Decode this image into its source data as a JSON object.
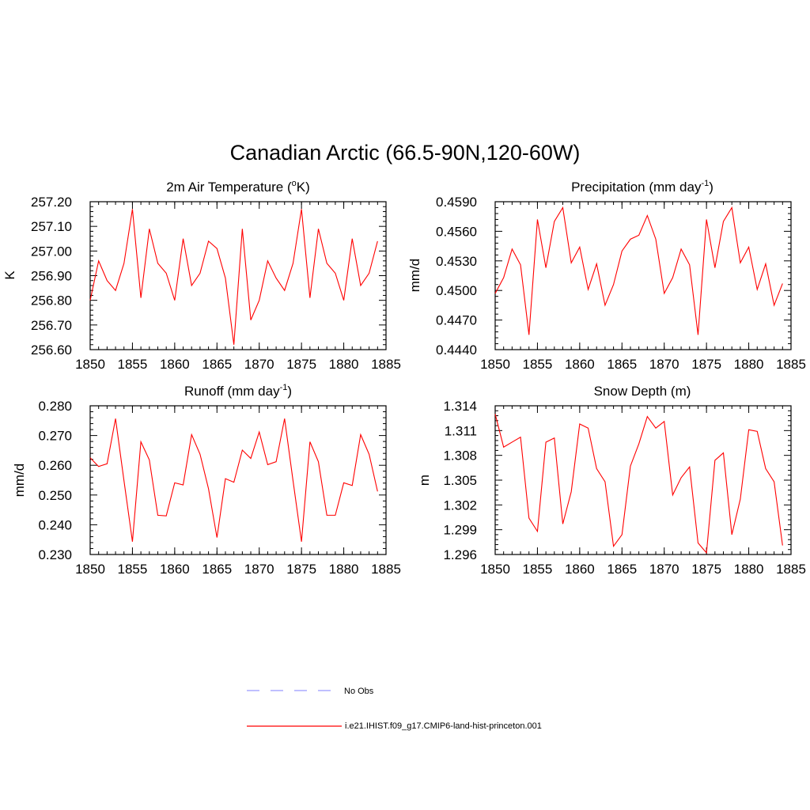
{
  "figure_title": "Canadian Arctic (66.5-90N,120-60W)",
  "legend": {
    "placement": "bottom-center",
    "entries": [
      {
        "label": "No Obs",
        "color": "#9999ff",
        "style": "dashed"
      },
      {
        "label": "i.e21.IHIST.f09_g17.CMIP6-land-hist-princeton.001",
        "color": "#ff0000",
        "style": "solid"
      }
    ]
  },
  "chart_data": [
    {
      "type": "line",
      "title_main": "2m Air Temperature (",
      "title_sup1": "o",
      "title_rest": "K)",
      "title_sup2": "",
      "title_tail": "",
      "ylabel": "K",
      "xlim": [
        1850,
        1885
      ],
      "ylim": [
        256.6,
        257.2
      ],
      "xticks": [
        "1850",
        "1855",
        "1860",
        "1865",
        "1870",
        "1875",
        "1880",
        "1885"
      ],
      "yticks": [
        "257.20",
        "257.10",
        "257.00",
        "256.90",
        "256.80",
        "256.70",
        "256.60"
      ],
      "series": [
        {
          "color": "#ff0000",
          "x": [
            1850,
            1851,
            1852,
            1853,
            1854,
            1855,
            1856,
            1857,
            1858,
            1859,
            1860,
            1861,
            1862,
            1863,
            1864,
            1865,
            1866,
            1867,
            1868,
            1869,
            1870,
            1871,
            1872,
            1873,
            1874,
            1875,
            1876,
            1877,
            1878,
            1879,
            1880,
            1881,
            1882,
            1883,
            1884
          ],
          "y": [
            256.8,
            256.96,
            256.88,
            256.84,
            256.95,
            257.17,
            256.81,
            257.09,
            256.95,
            256.91,
            256.8,
            257.05,
            256.86,
            256.91,
            257.04,
            257.01,
            256.89,
            256.62,
            257.09,
            256.72,
            256.8,
            256.96,
            256.89,
            256.84,
            256.95,
            257.17,
            256.81,
            257.09,
            256.95,
            256.91,
            256.8,
            257.05,
            256.86,
            256.91,
            257.04
          ]
        }
      ]
    },
    {
      "type": "line",
      "title_main": "Precipitation (mm day",
      "title_sup1": "-1",
      "title_rest": ")",
      "title_sup2": "",
      "title_tail": "",
      "ylabel": "mm/d",
      "xlim": [
        1850,
        1885
      ],
      "ylim": [
        0.444,
        0.459
      ],
      "xticks": [
        "1850",
        "1855",
        "1860",
        "1865",
        "1870",
        "1875",
        "1880",
        "1885"
      ],
      "yticks": [
        "0.4590",
        "0.4560",
        "0.4530",
        "0.4500",
        "0.4470",
        "0.4440"
      ],
      "series": [
        {
          "color": "#ff0000",
          "x": [
            1850,
            1851,
            1852,
            1853,
            1854,
            1855,
            1856,
            1857,
            1858,
            1859,
            1860,
            1861,
            1862,
            1863,
            1864,
            1865,
            1866,
            1867,
            1868,
            1869,
            1870,
            1871,
            1872,
            1873,
            1874,
            1875,
            1876,
            1877,
            1878,
            1879,
            1880,
            1881,
            1882,
            1883,
            1884
          ],
          "y": [
            0.4497,
            0.4513,
            0.4542,
            0.4526,
            0.4455,
            0.4572,
            0.4523,
            0.457,
            0.4584,
            0.4528,
            0.4544,
            0.4501,
            0.4527,
            0.4485,
            0.4506,
            0.454,
            0.4552,
            0.4556,
            0.4576,
            0.4552,
            0.4497,
            0.4513,
            0.4542,
            0.4526,
            0.4455,
            0.4572,
            0.4523,
            0.457,
            0.4584,
            0.4528,
            0.4544,
            0.4501,
            0.4527,
            0.4485,
            0.4507
          ]
        }
      ]
    },
    {
      "type": "line",
      "title_main": "Runoff (mm day",
      "title_sup1": "-1",
      "title_rest": ")",
      "title_sup2": "",
      "title_tail": "",
      "ylabel": "mm/d",
      "xlim": [
        1850,
        1885
      ],
      "ylim": [
        0.23,
        0.28
      ],
      "xticks": [
        "1850",
        "1855",
        "1860",
        "1865",
        "1870",
        "1875",
        "1880",
        "1885"
      ],
      "yticks": [
        "0.280",
        "0.270",
        "0.260",
        "0.250",
        "0.240",
        "0.230"
      ],
      "series": [
        {
          "color": "#ff0000",
          "x": [
            1850,
            1851,
            1852,
            1853,
            1854,
            1855,
            1856,
            1857,
            1858,
            1859,
            1860,
            1861,
            1862,
            1863,
            1864,
            1865,
            1866,
            1867,
            1868,
            1869,
            1870,
            1871,
            1872,
            1873,
            1874,
            1875,
            1876,
            1877,
            1878,
            1879,
            1880,
            1881,
            1882,
            1883,
            1884
          ],
          "y": [
            0.2625,
            0.2596,
            0.2605,
            0.2757,
            0.2548,
            0.2343,
            0.2679,
            0.2618,
            0.2432,
            0.243,
            0.2541,
            0.2534,
            0.2703,
            0.2637,
            0.2521,
            0.2357,
            0.2555,
            0.2543,
            0.2651,
            0.2623,
            0.2712,
            0.2602,
            0.2612,
            0.2757,
            0.2548,
            0.2343,
            0.2679,
            0.2612,
            0.2432,
            0.2432,
            0.2541,
            0.2532,
            0.2703,
            0.2637,
            0.2512
          ]
        }
      ]
    },
    {
      "type": "line",
      "title_main": "Snow Depth (m)",
      "title_sup1": "",
      "title_rest": "",
      "title_sup2": "",
      "title_tail": "",
      "ylabel": "m",
      "xlim": [
        1850,
        1885
      ],
      "ylim": [
        1.296,
        1.314
      ],
      "xticks": [
        "1850",
        "1855",
        "1860",
        "1865",
        "1870",
        "1875",
        "1880",
        "1885"
      ],
      "yticks": [
        "1.314",
        "1.311",
        "1.308",
        "1.305",
        "1.302",
        "1.299",
        "1.296"
      ],
      "series": [
        {
          "color": "#ff0000",
          "x": [
            1850,
            1851,
            1852,
            1853,
            1854,
            1855,
            1856,
            1857,
            1858,
            1859,
            1860,
            1861,
            1862,
            1863,
            1864,
            1865,
            1866,
            1867,
            1868,
            1869,
            1870,
            1871,
            1872,
            1873,
            1874,
            1875,
            1876,
            1877,
            1878,
            1879,
            1880,
            1881,
            1882,
            1883,
            1884
          ],
          "y": [
            1.313,
            1.309,
            1.3096,
            1.3102,
            1.3004,
            1.2988,
            1.3096,
            1.3101,
            1.2997,
            1.3036,
            1.3118,
            1.3113,
            1.3064,
            1.3048,
            1.297,
            1.2984,
            1.3067,
            1.3094,
            1.3127,
            1.3113,
            1.3121,
            1.3032,
            1.3053,
            1.3066,
            1.2974,
            1.2962,
            1.3074,
            1.3083,
            1.2984,
            1.3027,
            1.3111,
            1.3109,
            1.3064,
            1.3048,
            1.2971
          ]
        }
      ]
    }
  ]
}
